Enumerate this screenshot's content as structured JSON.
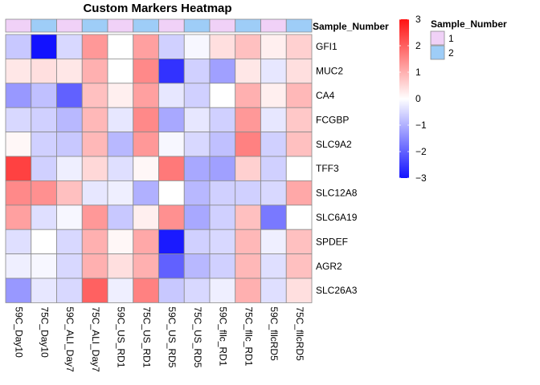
{
  "chart_data": {
    "type": "heatmap",
    "title": "Custom Markers Heatmap",
    "rows": [
      "GFI1",
      "MUC2",
      "CA4",
      "FCGBP",
      "SLC9A2",
      "TFF3",
      "SLC12A8",
      "SLC6A19",
      "SPDEF",
      "AGR2",
      "SLC26A3"
    ],
    "columns": [
      "59C_Day10",
      "75C_Day10",
      "59C_ALI_Day7",
      "75C_ALI_Day7",
      "59C_US_RD1",
      "75C_US_RD1",
      "59C_US_RD5",
      "75C_US_RD5",
      "59C_fllc_RD1",
      "75C_fllc_RD1",
      "59C_fllcRD5",
      "75C_fllcRD5"
    ],
    "values": [
      [
        -0.7,
        -3.0,
        -0.5,
        1.3,
        0.0,
        1.2,
        -0.6,
        -0.1,
        0.4,
        0.8,
        0.2,
        0.6
      ],
      [
        0.3,
        0.4,
        0.3,
        1.0,
        0.0,
        1.5,
        -2.6,
        -0.6,
        -1.2,
        0.3,
        -0.3,
        0.4
      ],
      [
        -1.3,
        -0.8,
        -2.0,
        0.8,
        0.2,
        1.2,
        -0.3,
        -0.6,
        0.0,
        1.0,
        0.2,
        0.9
      ],
      [
        -0.5,
        -0.6,
        -0.9,
        0.9,
        -0.3,
        1.5,
        -1.1,
        -0.3,
        -0.6,
        1.3,
        -0.3,
        0.7
      ],
      [
        0.1,
        -0.6,
        -0.7,
        0.9,
        -0.9,
        1.3,
        -0.1,
        -0.5,
        -0.8,
        1.6,
        -0.6,
        0.8
      ],
      [
        2.4,
        -0.6,
        -0.2,
        0.5,
        -0.4,
        0.1,
        1.7,
        -1.1,
        -1.2,
        0.6,
        -0.6,
        0.0
      ],
      [
        1.5,
        1.4,
        0.8,
        -0.3,
        -0.2,
        -1.0,
        0.0,
        -0.9,
        -0.6,
        -0.6,
        -0.5,
        1.1
      ],
      [
        1.2,
        -0.4,
        -0.1,
        1.3,
        -0.7,
        0.2,
        1.4,
        -1.1,
        -0.6,
        0.8,
        -1.7,
        0.0
      ],
      [
        -0.4,
        0.0,
        -0.5,
        1.0,
        0.1,
        1.1,
        -2.9,
        -0.6,
        -0.5,
        0.9,
        -0.2,
        0.8
      ],
      [
        -0.2,
        -0.1,
        -0.5,
        1.0,
        0.4,
        1.0,
        -2.0,
        -0.9,
        -0.6,
        0.9,
        -0.4,
        0.8
      ],
      [
        -1.3,
        -0.3,
        -0.5,
        2.0,
        -0.2,
        1.6,
        -0.7,
        -0.5,
        -0.2,
        1.0,
        -0.4,
        0.4
      ]
    ],
    "color_scale": {
      "min": -3,
      "max": 3,
      "low_color": "#1212ff",
      "mid_color": "#ffffff",
      "high_color": "#ff1212",
      "ticks": [
        3,
        2,
        1,
        0,
        -1,
        -2,
        -3
      ]
    },
    "annotation": {
      "name": "Sample_Number",
      "values": [
        "1",
        "2",
        "1",
        "2",
        "1",
        "2",
        "1",
        "2",
        "1",
        "2",
        "1",
        "2"
      ],
      "levels": [
        "1",
        "2"
      ],
      "colors": {
        "1": "#f0d1f7",
        "2": "#9ecdf7"
      }
    },
    "grid": true,
    "legend_position": "right"
  }
}
